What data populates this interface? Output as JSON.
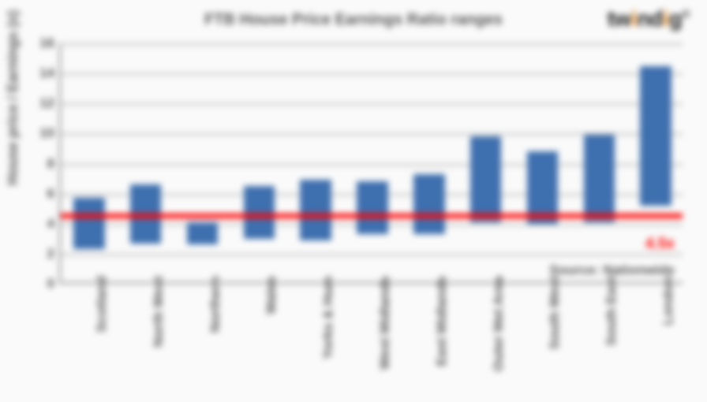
{
  "title": {
    "text": "FTB House Price Earnings Ratio ranges",
    "fontsize": 20,
    "color": "#555555"
  },
  "logo": {
    "text": "twindig",
    "fontsize": 28,
    "dot_color": "#f08c1a",
    "text_color": "#222222"
  },
  "ylabel": {
    "text": "House price / Earnings (x)",
    "fontsize": 18
  },
  "source": {
    "text": "Source: Nationwide",
    "fontsize": 17,
    "color": "#555555",
    "y_position": 1.4
  },
  "chart": {
    "type": "floating-bar",
    "ylim": [
      0,
      16
    ],
    "ytick_step": 2,
    "yticks": [
      0,
      2,
      4,
      6,
      8,
      10,
      12,
      14,
      16
    ],
    "grid_color": "#b3b3b3",
    "axis_color": "#7f7f7f",
    "bar_color": "#3e6fae",
    "bar_width_ratio": 0.55,
    "background_color": "#fafafa",
    "tick_fontsize": 17,
    "reference_line": {
      "value": 4.5,
      "color": "#ff0000",
      "width": 6,
      "label": "4.5x",
      "label_fontsize": 19,
      "label_y": 3.2
    },
    "categories": [
      {
        "label": "Scotland",
        "low": 2.3,
        "high": 5.7
      },
      {
        "label": "North West",
        "low": 2.7,
        "high": 6.6
      },
      {
        "label": "Northern",
        "low": 2.6,
        "high": 4.1
      },
      {
        "label": "Wales",
        "low": 3.0,
        "high": 6.5
      },
      {
        "label": "Yorks & Hum",
        "low": 2.9,
        "high": 6.9
      },
      {
        "label": "West Midlands",
        "low": 3.3,
        "high": 6.8
      },
      {
        "label": "East Midlands",
        "low": 3.3,
        "high": 7.3
      },
      {
        "label": "Outer Met Area",
        "low": 4.1,
        "high": 9.8
      },
      {
        "label": "South West",
        "low": 4.0,
        "high": 8.8
      },
      {
        "label": "South East",
        "low": 4.1,
        "high": 9.9
      },
      {
        "label": "London",
        "low": 5.2,
        "high": 14.5
      }
    ]
  }
}
